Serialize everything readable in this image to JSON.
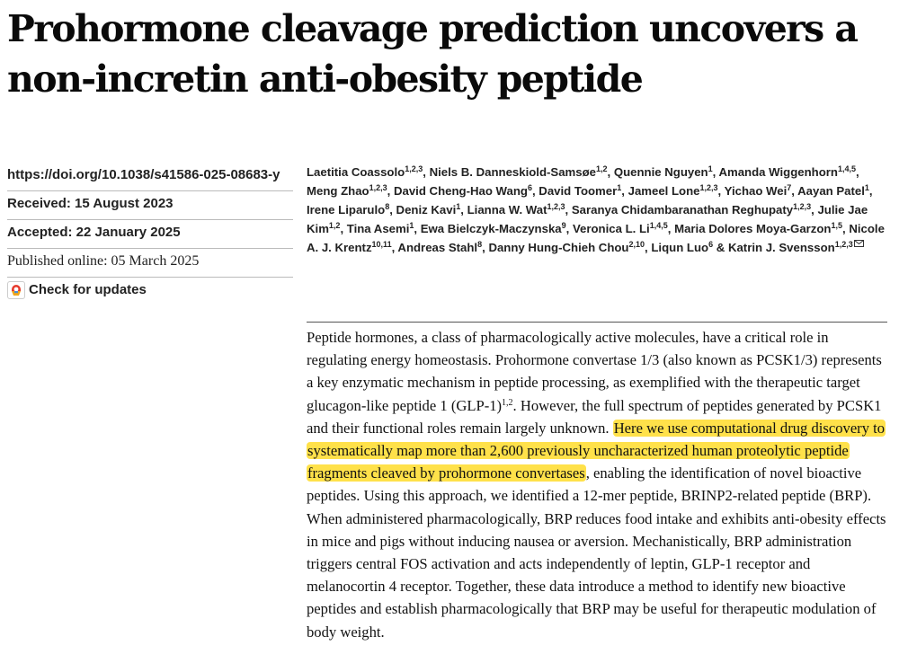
{
  "title": "Prohormone cleavage prediction uncovers a non-incretin anti-obesity peptide",
  "meta": {
    "doi": "https://doi.org/10.1038/s41586-025-08683-y",
    "received": "Received: 15 August 2023",
    "accepted": "Accepted: 22 January 2025",
    "published": "Published online: 05 March 2025",
    "check_updates": "Check for updates"
  },
  "authors": [
    {
      "name": "Laetitia Coassolo",
      "aff": "1,2,3",
      "sep": ", "
    },
    {
      "name": "Niels B. Danneskiold-Samsøe",
      "aff": "1,2",
      "sep": ", "
    },
    {
      "name": "Quennie Nguyen",
      "aff": "1",
      "sep": ", "
    },
    {
      "name": "Amanda Wiggenhorn",
      "aff": "1,4,5",
      "sep": ", "
    },
    {
      "name": "Meng Zhao",
      "aff": "1,2,3",
      "sep": ", "
    },
    {
      "name": "David Cheng-Hao Wang",
      "aff": "6",
      "sep": ", "
    },
    {
      "name": "David Toomer",
      "aff": "1",
      "sep": ", "
    },
    {
      "name": "Jameel Lone",
      "aff": "1,2,3",
      "sep": ", "
    },
    {
      "name": "Yichao Wei",
      "aff": "7",
      "sep": ", "
    },
    {
      "name": "Aayan Patel",
      "aff": "1",
      "sep": ", "
    },
    {
      "name": "Irene Liparulo",
      "aff": "8",
      "sep": ", "
    },
    {
      "name": "Deniz Kavi",
      "aff": "1",
      "sep": ", "
    },
    {
      "name": "Lianna W. Wat",
      "aff": "1,2,3",
      "sep": ", "
    },
    {
      "name": "Saranya Chidambaranathan Reghupaty",
      "aff": "1,2,3",
      "sep": ", "
    },
    {
      "name": "Julie Jae Kim",
      "aff": "1,2",
      "sep": ", "
    },
    {
      "name": "Tina Asemi",
      "aff": "1",
      "sep": ", "
    },
    {
      "name": "Ewa Bielczyk-Maczynska",
      "aff": "9",
      "sep": ", "
    },
    {
      "name": "Veronica L. Li",
      "aff": "1,4,5",
      "sep": ", "
    },
    {
      "name": "Maria Dolores Moya-Garzon",
      "aff": "1,5",
      "sep": ", "
    },
    {
      "name": "Nicole A. J. Krentz",
      "aff": "10,11",
      "sep": ", "
    },
    {
      "name": "Andreas Stahl",
      "aff": "8",
      "sep": ", "
    },
    {
      "name": "Danny Hung-Chieh Chou",
      "aff": "2,10",
      "sep": ", "
    },
    {
      "name": "Liqun Luo",
      "aff": "6",
      "sep": " & "
    },
    {
      "name": "Katrin J. Svensson",
      "aff": "1,2,3",
      "sep": ""
    }
  ],
  "abstract": {
    "p1": "Peptide hormones, a class of pharmacologically active molecules, have a critical role in regulating energy homeostasis. Prohormone convertase 1/3 (also known as PCSK1/3) represents a key enzymatic mechanism in peptide processing, as exemplified with the therapeutic target glucagon-like peptide 1 (GLP-1)",
    "ref1": "1,2",
    "p2": ". However, the full spectrum of peptides generated by PCSK1 and their functional roles remain largely unknown. ",
    "highlight": "Here we use computational drug discovery to systematically map more than 2,600 previously uncharacterized human proteolytic peptide fragments cleaved by prohormone convertases",
    "p3": ", enabling the identification of novel bioactive peptides. Using this approach, we identified a 12-mer peptide, BRINP2-related peptide (BRP). When administered pharmacologically, BRP reduces food intake and exhibits anti-obesity effects in mice and pigs without inducing nausea or aversion. Mechanistically, BRP administration triggers central FOS activation and acts independently of leptin, GLP-1 receptor and melanocortin 4 receptor. Together, these data introduce a method to identify new bioactive peptides and establish pharmacologically that BRP may be useful for therapeutic modulation of body weight.",
    "highlight_color": "#ffe14a"
  }
}
